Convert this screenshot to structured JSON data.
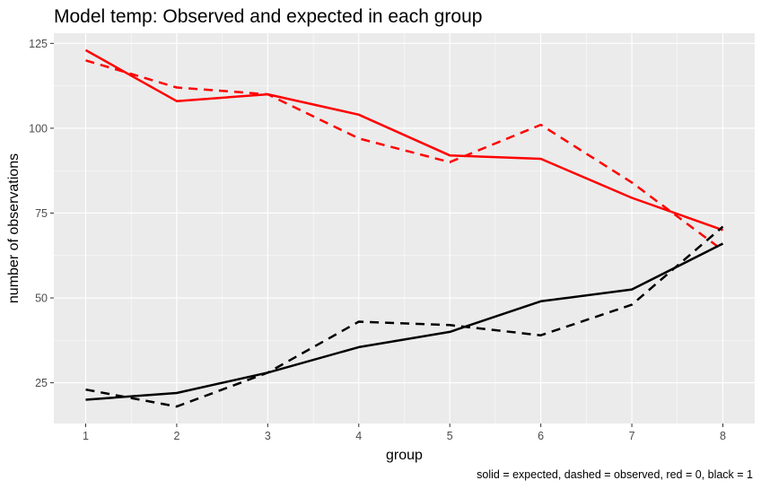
{
  "chart_data": {
    "type": "line",
    "title": "Model temp: Observed and expected in each group",
    "xlabel": "group",
    "ylabel": "number of observations",
    "caption": "solid = expected, dashed = observed, red = 0, black = 1",
    "x": [
      1,
      2,
      3,
      4,
      5,
      6,
      7,
      8
    ],
    "xticks": [
      "1",
      "2",
      "3",
      "4",
      "5",
      "6",
      "7",
      "8"
    ],
    "yticks": [
      25,
      50,
      75,
      100,
      125
    ],
    "xlim": [
      0.65,
      8.35
    ],
    "ylim": [
      13,
      128
    ],
    "grid": true,
    "series": [
      {
        "color": "#ff0000",
        "dash": "solid",
        "values": [
          123,
          108,
          110,
          104,
          92,
          91,
          79.5,
          70
        ]
      },
      {
        "color": "#ff0000",
        "dash": "dashed",
        "values": [
          120,
          112,
          110,
          97,
          90,
          101,
          84,
          64
        ]
      },
      {
        "color": "#000000",
        "dash": "solid",
        "values": [
          20,
          22,
          28,
          35.5,
          40,
          49,
          52.5,
          66
        ]
      },
      {
        "color": "#000000",
        "dash": "dashed",
        "values": [
          23,
          18,
          28,
          43,
          42,
          39,
          48,
          71
        ]
      }
    ]
  },
  "colors": {
    "panel_background": "#ebebeb",
    "grid_major": "#ffffff"
  }
}
